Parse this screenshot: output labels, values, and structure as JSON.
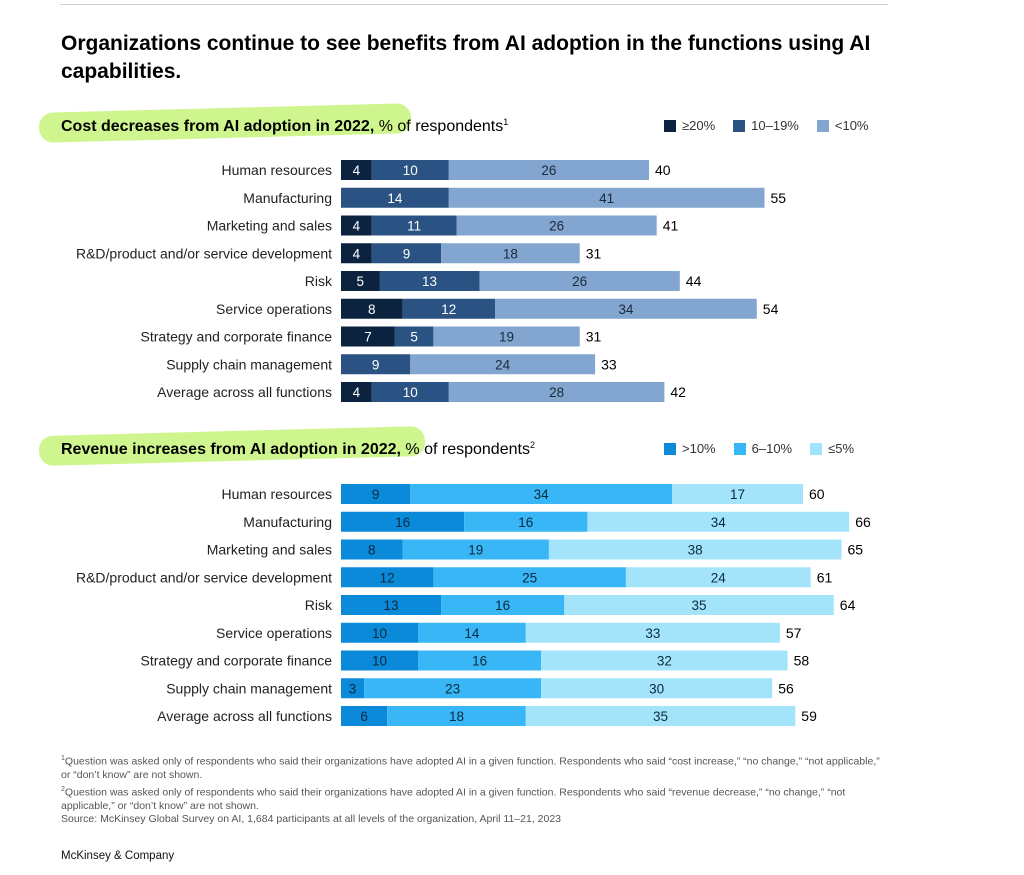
{
  "title": "Organizations continue to see benefits from AI adoption in the functions using AI capabilities.",
  "section1": {
    "heading_bold": "Cost decreases from AI adoption in 2022,",
    "heading_rest": " % of respondents",
    "heading_sup": "1"
  },
  "section2": {
    "heading_bold": "Revenue increases from AI adoption in 2022,",
    "heading_rest": " % of respondents",
    "heading_sup": "2"
  },
  "chart_data": [
    {
      "type": "bar",
      "orientation": "horizontal",
      "stacked": true,
      "title": "Cost decreases from AI adoption in 2022, % of respondents",
      "categories": [
        "Human resources",
        "Manufacturing",
        "Marketing and sales",
        "R&D/product and/or service development",
        "Risk",
        "Service operations",
        "Strategy and corporate finance",
        "Supply chain management",
        "Average across all functions"
      ],
      "series": [
        {
          "name": "≥20%",
          "color": "#0c2340",
          "text_color": "#ffffff",
          "values": [
            4,
            null,
            4,
            4,
            5,
            8,
            7,
            null,
            4
          ]
        },
        {
          "name": "10–19%",
          "color": "#2a5283",
          "text_color": "#ffffff",
          "values": [
            10,
            14,
            11,
            9,
            13,
            12,
            5,
            9,
            10
          ]
        },
        {
          "name": "<10%",
          "color": "#82a6cf",
          "text_color": "#1a2a3a",
          "values": [
            26,
            41,
            26,
            18,
            26,
            34,
            19,
            24,
            28
          ]
        }
      ],
      "totals": [
        40,
        55,
        41,
        31,
        44,
        54,
        31,
        33,
        42
      ],
      "legend_position": "top-right",
      "grid": false
    },
    {
      "type": "bar",
      "orientation": "horizontal",
      "stacked": true,
      "title": "Revenue increases from AI adoption in 2022, % of respondents",
      "categories": [
        "Human resources",
        "Manufacturing",
        "Marketing and sales",
        "R&D/product and/or service development",
        "Risk",
        "Service operations",
        "Strategy and corporate finance",
        "Supply chain management",
        "Average across all functions"
      ],
      "series": [
        {
          "name": ">10%",
          "color": "#0a8ad8",
          "text_color": "#0b2a40",
          "values": [
            9,
            16,
            8,
            12,
            13,
            10,
            10,
            3,
            6
          ]
        },
        {
          "name": "6–10%",
          "color": "#38b6f5",
          "text_color": "#0b2a40",
          "values": [
            34,
            16,
            19,
            25,
            16,
            14,
            16,
            23,
            18
          ]
        },
        {
          "name": "≤5%",
          "color": "#a4e4fb",
          "text_color": "#0b2a40",
          "values": [
            17,
            34,
            38,
            24,
            35,
            33,
            32,
            30,
            35
          ]
        }
      ],
      "totals": [
        60,
        66,
        65,
        61,
        64,
        57,
        58,
        56,
        59
      ],
      "legend_position": "top-right",
      "grid": false
    }
  ],
  "footnotes": [
    {
      "sup": "1",
      "text": "Question was asked only of respondents who said their organizations have adopted AI in a given function. Respondents who said “cost increase,” “no change,” “not applicable,” or “don’t know” are not shown."
    },
    {
      "sup": "2",
      "text": "Question was asked only of respondents who said their organizations have adopted AI in a given function. Respondents who said “revenue decrease,” “no change,” “not applicable,” or “don’t know” are not shown."
    }
  ],
  "source": "Source: McKinsey Global Survey on AI, 1,684 participants at all levels of the organization, April 11–21, 2023",
  "brand": "McKinsey & Company"
}
